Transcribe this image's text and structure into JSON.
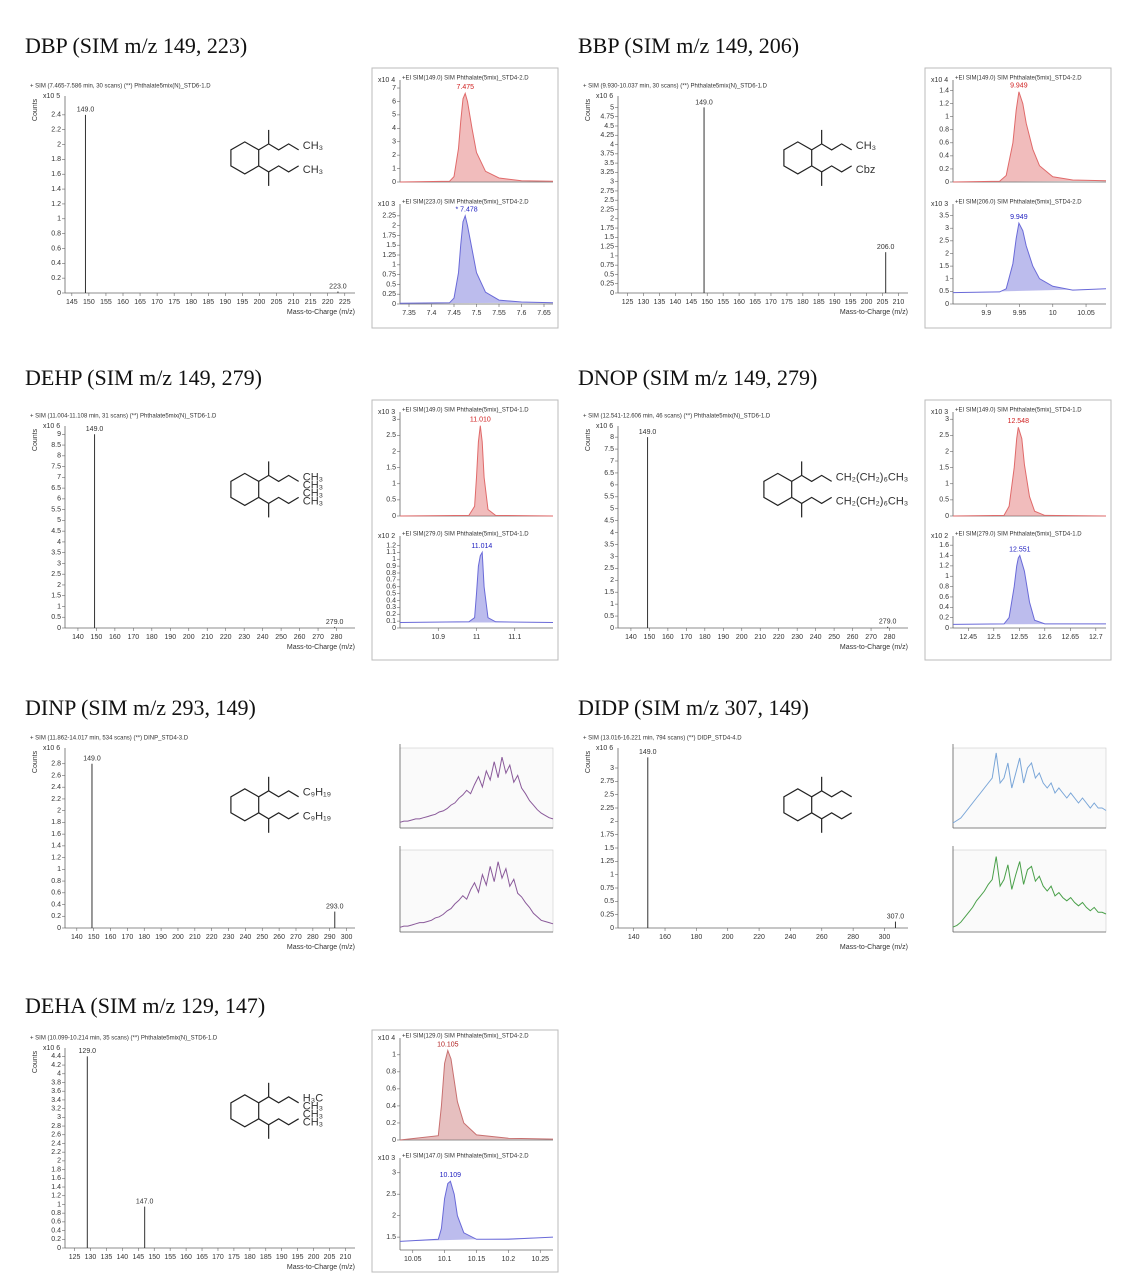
{
  "chart_data": [
    {
      "type": "bar",
      "title": "DBP (SIM m/z 149, 223)",
      "subtitle": "+ SIM (7.465-7.586 min, 30 scans) (**) Phthalate5mix(N)_STD6-1.D",
      "scale": "x10 5",
      "ylabel": "Counts",
      "xlabel": "Mass-to-Charge (m/z)",
      "x": [
        {
          "value": 149,
          "label": "149.0"
        },
        {
          "value": 223,
          "label": "223.0"
        }
      ],
      "values": [
        2.4,
        0.02
      ],
      "color": "#333333",
      "xlim": [
        143,
        228
      ],
      "xticks": [
        145,
        150,
        155,
        160,
        165,
        170,
        175,
        180,
        185,
        190,
        195,
        200,
        205,
        210,
        215,
        220,
        225
      ],
      "ylim": [
        0,
        2.6
      ],
      "yticks": [
        0,
        0.2,
        0.4,
        0.6,
        0.8,
        1,
        1.2,
        1.4,
        1.6,
        1.8,
        2,
        2.2,
        2.4
      ],
      "structure_labels": [
        "CH₃",
        "CH₃"
      ]
    },
    {
      "type": "line",
      "title": "+EI SIM(149.0) SIM Phthalate(5mix)_STD4-2.D",
      "scale": "x10 4",
      "color": "#e06a6a",
      "peak_label": {
        "value": 7.475,
        "label": "7.475"
      },
      "label_color": "#d02020",
      "x": [
        7.33,
        7.44,
        7.45,
        7.46,
        7.465,
        7.47,
        7.475,
        7.48,
        7.49,
        7.5,
        7.52,
        7.55,
        7.6,
        7.67
      ],
      "values": [
        0,
        0.05,
        0.4,
        2.5,
        4.5,
        6.2,
        6.6,
        6.0,
        4.0,
        2.2,
        0.8,
        0.3,
        0.1,
        0.05
      ],
      "xlim": [
        7.33,
        7.67
      ],
      "ylim": [
        0,
        7.3
      ],
      "yticks": [
        0,
        1,
        2,
        3,
        4,
        5,
        6,
        7
      ]
    },
    {
      "type": "line",
      "title": "+EI SIM(223.0) SIM Phthalate(5mix)_STD4-2.D",
      "scale": "x10 3",
      "color": "#6a6ad8",
      "peak_label": {
        "value": 7.478,
        "label": "* 7.478"
      },
      "label_color": "#2020c0",
      "x": [
        7.33,
        7.44,
        7.45,
        7.46,
        7.465,
        7.47,
        7.475,
        7.48,
        7.49,
        7.5,
        7.52,
        7.55,
        7.6,
        7.67
      ],
      "values": [
        0.02,
        0.03,
        0.15,
        0.8,
        1.5,
        2.1,
        2.25,
        2.0,
        1.4,
        0.8,
        0.3,
        0.1,
        0.05,
        0.03
      ],
      "xlim": [
        7.33,
        7.67
      ],
      "xticks": [
        7.35,
        7.4,
        7.45,
        7.5,
        7.55,
        7.6,
        7.65
      ],
      "ylim": [
        0,
        2.45
      ],
      "yticks": [
        0,
        0.25,
        0.5,
        0.75,
        1,
        1.25,
        1.5,
        1.75,
        2,
        2.25
      ]
    },
    {
      "type": "bar",
      "title": "BBP (SIM m/z 149, 206)",
      "subtitle": "+ SIM (9.930-10.037 min, 30 scans) (**) Phthalate5mix(N)_STD6-1.D",
      "scale": "x10 6",
      "ylabel": "Counts",
      "xlabel": "Mass-to-Charge (m/z)",
      "x": [
        {
          "value": 149,
          "label": "149.0"
        },
        {
          "value": 206,
          "label": "206.0"
        }
      ],
      "values": [
        5.0,
        1.1
      ],
      "color": "#333333",
      "xlim": [
        122,
        213
      ],
      "xticks": [
        125,
        130,
        135,
        140,
        145,
        150,
        155,
        160,
        165,
        170,
        175,
        180,
        185,
        190,
        195,
        200,
        205,
        210
      ],
      "ylim": [
        0,
        5.2
      ],
      "yticks": [
        0,
        0.25,
        0.5,
        0.75,
        1,
        1.25,
        1.5,
        1.75,
        2,
        2.25,
        2.5,
        2.75,
        3,
        3.25,
        3.5,
        3.75,
        4,
        4.25,
        4.5,
        4.75,
        5
      ],
      "structure_labels": [
        "CH₃",
        "Cbz"
      ]
    },
    {
      "type": "line",
      "title": "+EI SIM(149.0) SIM Phthalate(5mix)_STD4-2.D",
      "scale": "x10 4",
      "color": "#e06a6a",
      "peak_label": {
        "value": 9.949,
        "label": "9.949"
      },
      "label_color": "#d02020",
      "x": [
        9.85,
        9.92,
        9.93,
        9.94,
        9.945,
        9.949,
        9.955,
        9.96,
        9.97,
        9.98,
        10.0,
        10.03,
        10.08
      ],
      "values": [
        0,
        0.01,
        0.1,
        0.6,
        1.1,
        1.38,
        1.2,
        0.9,
        0.5,
        0.25,
        0.08,
        0.03,
        0.02
      ],
      "xlim": [
        9.85,
        10.08
      ],
      "ylim": [
        0,
        1.5
      ],
      "yticks": [
        0,
        0.2,
        0.4,
        0.6,
        0.8,
        1,
        1.2,
        1.4
      ]
    },
    {
      "type": "line",
      "title": "+EI SIM(206.0) SIM Phthalate(5mix)_STD4-2.D",
      "scale": "x10 3",
      "color": "#6a6ad8",
      "peak_label": {
        "value": 9.949,
        "label": "9.949"
      },
      "label_color": "#2020c0",
      "x": [
        9.85,
        9.92,
        9.93,
        9.94,
        9.945,
        9.949,
        9.955,
        9.96,
        9.97,
        9.98,
        10.0,
        10.03,
        10.08
      ],
      "values": [
        0.45,
        0.48,
        0.6,
        1.6,
        2.6,
        3.2,
        2.9,
        2.3,
        1.5,
        1.0,
        0.7,
        0.55,
        0.6
      ],
      "xlim": [
        9.85,
        10.08
      ],
      "xticks": [
        9.9,
        9.95,
        10,
        10.05
      ],
      "ylim": [
        0,
        3.8
      ],
      "yticks": [
        0,
        0.5,
        1,
        1.5,
        2,
        2.5,
        3,
        3.5
      ]
    },
    {
      "type": "bar",
      "title": "DEHP (SIM m/z 149, 279)",
      "subtitle": "+ SIM (11.004-11.108 min, 31 scans) (**) Phthalate5mix(N)_STD6-1.D",
      "scale": "x10 6",
      "ylabel": "Counts",
      "xlabel": "Mass-to-Charge (m/z)",
      "x": [
        {
          "value": 149,
          "label": "149.0"
        },
        {
          "value": 279,
          "label": "279.0"
        }
      ],
      "values": [
        9.0,
        0.05
      ],
      "color": "#333333",
      "xlim": [
        133,
        290
      ],
      "xticks": [
        140,
        150,
        160,
        170,
        180,
        190,
        200,
        210,
        220,
        230,
        240,
        250,
        260,
        270,
        280
      ],
      "ylim": [
        0,
        9.2
      ],
      "yticks": [
        0,
        0.5,
        1,
        1.5,
        2,
        2.5,
        3,
        3.5,
        4,
        4.5,
        5,
        5.5,
        6,
        6.5,
        7,
        7.5,
        8,
        8.5,
        9
      ],
      "structure_labels": [
        "CH₃",
        "CH₃",
        "CH₃",
        "CH₃"
      ]
    },
    {
      "type": "line",
      "title": "+EI SIM(149.0) SIM Phthalate(5mix)_STD4-1.D",
      "scale": "x10 3",
      "color": "#e06a6a",
      "peak_label": {
        "value": 11.01,
        "label": "11.010"
      },
      "label_color": "#d02020",
      "x": [
        10.8,
        10.98,
        10.995,
        11.0,
        11.005,
        11.01,
        11.015,
        11.02,
        11.03,
        11.05,
        11.2
      ],
      "values": [
        0,
        0.02,
        0.3,
        1.2,
        2.3,
        2.8,
        2.3,
        1.2,
        0.2,
        0.02,
        0
      ],
      "xlim": [
        10.8,
        11.2
      ],
      "ylim": [
        0,
        3.1
      ],
      "yticks": [
        0,
        0.5,
        1,
        1.5,
        2,
        2.5,
        3
      ]
    },
    {
      "type": "line",
      "title": "+EI SIM(279.0) SIM Phthalate(5mix)_STD4-1.D",
      "scale": "x10 2",
      "color": "#6a6ad8",
      "peak_label": {
        "value": 11.014,
        "label": "11.014"
      },
      "label_color": "#2020c0",
      "x": [
        10.8,
        10.98,
        10.995,
        11.0,
        11.005,
        11.01,
        11.015,
        11.02,
        11.03,
        11.05,
        11.2
      ],
      "values": [
        0.08,
        0.09,
        0.15,
        0.5,
        0.9,
        1.05,
        1.1,
        0.6,
        0.15,
        0.09,
        0.08
      ],
      "xlim": [
        10.8,
        11.2
      ],
      "xticks": [
        10.9,
        11,
        11.1
      ],
      "ylim": [
        0,
        1.28
      ],
      "yticks": [
        0,
        0.1,
        0.2,
        0.3,
        0.4,
        0.5,
        0.6,
        0.7,
        0.8,
        0.9,
        1,
        1.1,
        1.2
      ]
    },
    {
      "type": "bar",
      "title": "DNOP (SIM m/z 149, 279)",
      "subtitle": "+ SIM (12.541-12.606 min, 46 scans) (**) Phthalate5mix(N)_STD6-1.D",
      "scale": "x10 6",
      "ylabel": "Counts",
      "xlabel": "Mass-to-Charge (m/z)",
      "x": [
        {
          "value": 149,
          "label": "149.0"
        },
        {
          "value": 279,
          "label": "279.0"
        }
      ],
      "values": [
        8.0,
        0.05
      ],
      "color": "#333333",
      "xlim": [
        133,
        290
      ],
      "xticks": [
        140,
        150,
        160,
        170,
        180,
        190,
        200,
        210,
        220,
        230,
        240,
        250,
        260,
        270,
        280
      ],
      "ylim": [
        0,
        8.3
      ],
      "yticks": [
        0,
        0.5,
        1,
        1.5,
        2,
        2.5,
        3,
        3.5,
        4,
        4.5,
        5,
        5.5,
        6,
        6.5,
        7,
        7.5,
        8
      ],
      "structure_labels": [
        "CH₂(CH₂)₆CH₃",
        "CH₂(CH₂)₆CH₃"
      ]
    },
    {
      "type": "line",
      "title": "+EI SIM(149.0) SIM Phthalate(5mix)_STD4-1.D",
      "scale": "x10 3",
      "color": "#e06a6a",
      "peak_label": {
        "value": 12.548,
        "label": "12.548"
      },
      "label_color": "#d02020",
      "x": [
        12.42,
        12.52,
        12.53,
        12.54,
        12.545,
        12.548,
        12.555,
        12.56,
        12.57,
        12.58,
        12.6,
        12.72
      ],
      "values": [
        0,
        0.02,
        0.3,
        1.5,
        2.4,
        2.75,
        2.4,
        1.6,
        0.6,
        0.15,
        0.02,
        0
      ],
      "xlim": [
        12.42,
        12.72
      ],
      "ylim": [
        0,
        3.1
      ],
      "yticks": [
        0,
        0.5,
        1,
        1.5,
        2,
        2.5,
        3
      ]
    },
    {
      "type": "line",
      "title": "+EI SIM(279.0) SIM Phthalate(5mix)_STD4-1.D",
      "scale": "x10 2",
      "color": "#6a6ad8",
      "peak_label": {
        "value": 12.551,
        "label": "12.551"
      },
      "label_color": "#2020c0",
      "x": [
        12.42,
        12.52,
        12.53,
        12.54,
        12.545,
        12.548,
        12.551,
        12.56,
        12.57,
        12.58,
        12.6,
        12.72
      ],
      "values": [
        0.07,
        0.08,
        0.2,
        0.8,
        1.2,
        1.35,
        1.4,
        1.1,
        0.5,
        0.15,
        0.08,
        0.08
      ],
      "xlim": [
        12.42,
        12.72
      ],
      "xticks": [
        12.45,
        12.5,
        12.55,
        12.6,
        12.65,
        12.7
      ],
      "ylim": [
        0,
        1.7
      ],
      "yticks": [
        0,
        0.2,
        0.4,
        0.6,
        0.8,
        1,
        1.2,
        1.4,
        1.6
      ]
    },
    {
      "type": "bar",
      "title": "DINP (SIM m/z 293, 149)",
      "subtitle": "+ SIM (11.862-14.017 min, 534 scans) (**) DINP_STD4-3.D",
      "scale": "x10 6",
      "ylabel": "Counts",
      "xlabel": "Mass-to-Charge (m/z)",
      "x": [
        {
          "value": 149,
          "label": "149.0"
        },
        {
          "value": 293,
          "label": "293.0"
        }
      ],
      "values": [
        2.8,
        0.28
      ],
      "color": "#333333",
      "xlim": [
        133,
        305
      ],
      "xticks": [
        140,
        150,
        160,
        170,
        180,
        190,
        200,
        210,
        220,
        230,
        240,
        250,
        260,
        270,
        280,
        290,
        300
      ],
      "ylim": [
        0,
        3.0
      ],
      "yticks": [
        0,
        0.2,
        0.4,
        0.6,
        0.8,
        1,
        1.2,
        1.4,
        1.6,
        1.8,
        2,
        2.2,
        2.4,
        2.6,
        2.8
      ],
      "structure_labels": [
        "C₉H₁₉",
        "C₉H₁₉"
      ]
    },
    {
      "type": "line",
      "color": "#8a5a9a",
      "ylim": [
        0,
        7
      ],
      "values": [
        0.5,
        0.6,
        0.6,
        0.7,
        0.8,
        0.8,
        0.9,
        1.0,
        1.1,
        1.2,
        1.4,
        1.5,
        1.7,
        2.0,
        2.2,
        2.6,
        2.9,
        3.3,
        3.0,
        3.8,
        4.5,
        3.6,
        5.0,
        4.2,
        5.8,
        4.4,
        6.2,
        4.8,
        5.5,
        4.0,
        4.6,
        3.5,
        3.0,
        2.4,
        2.0,
        1.6,
        1.3,
        1.1,
        0.9,
        0.8
      ]
    },
    {
      "type": "line",
      "color": "#8a5a9a",
      "ylim": [
        0,
        7
      ],
      "values": [
        0.4,
        0.5,
        0.5,
        0.6,
        0.7,
        0.8,
        0.8,
        0.9,
        1.0,
        1.2,
        1.3,
        1.5,
        1.8,
        2.0,
        2.4,
        2.7,
        3.1,
        2.8,
        3.6,
        4.2,
        3.4,
        4.9,
        4.0,
        5.6,
        4.3,
        6.0,
        4.6,
        5.4,
        3.9,
        4.5,
        3.3,
        3.0,
        2.5,
        2.1,
        1.6,
        1.3,
        1.0,
        0.9,
        0.8,
        0.7
      ]
    },
    {
      "type": "bar",
      "title": "DIDP (SIM m/z 307, 149)",
      "subtitle": "+ SIM (13.016-16.221 min, 794 scans) (**) DIDP_STD4-4.D",
      "scale": "x10 6",
      "ylabel": "Counts",
      "xlabel": "Mass-to-Charge (m/z)",
      "x": [
        {
          "value": 149,
          "label": "149.0"
        },
        {
          "value": 307,
          "label": "307.0"
        }
      ],
      "values": [
        3.2,
        0.12
      ],
      "color": "#333333",
      "xlim": [
        130,
        315
      ],
      "xticks": [
        140,
        160,
        180,
        200,
        220,
        240,
        260,
        280,
        300
      ],
      "ylim": [
        0,
        3.3
      ],
      "yticks": [
        0,
        0.25,
        0.5,
        0.75,
        1,
        1.25,
        1.5,
        1.75,
        2,
        2.25,
        2.5,
        2.75,
        3
      ],
      "structure_labels": []
    },
    {
      "type": "line",
      "color": "#7aa6d8",
      "ylim": [
        0,
        16
      ],
      "values": [
        1,
        1.5,
        2,
        3,
        4,
        5,
        6,
        7,
        8,
        9,
        10,
        15,
        9,
        10,
        13,
        8,
        11,
        14,
        9,
        12,
        13,
        10,
        11,
        9,
        8,
        9,
        7,
        8,
        7,
        6,
        7,
        6,
        5,
        6,
        5,
        4,
        5,
        4,
        4,
        3.5
      ]
    },
    {
      "type": "line",
      "color": "#4aa04a",
      "ylim": [
        0,
        5
      ],
      "values": [
        0.3,
        0.4,
        0.6,
        0.9,
        1.2,
        1.5,
        1.9,
        2.2,
        2.5,
        2.9,
        3.2,
        4.6,
        2.8,
        3.2,
        4.1,
        2.6,
        3.5,
        4.3,
        2.9,
        3.8,
        4.0,
        3.1,
        3.4,
        2.8,
        2.5,
        2.8,
        2.2,
        2.4,
        2.1,
        1.9,
        2.1,
        1.8,
        1.6,
        1.8,
        1.5,
        1.3,
        1.5,
        1.2,
        1.2,
        1.1
      ]
    },
    {
      "type": "bar",
      "title": "DEHA (SIM m/z 129, 147)",
      "subtitle": "+ SIM (10.099-10.214 min, 35 scans) (**) Phthalate5mix(N)_STD6-1.D",
      "scale": "x10 6",
      "ylabel": "Counts",
      "xlabel": "Mass-to-Charge (m/z)",
      "x": [
        {
          "value": 129,
          "label": "129.0"
        },
        {
          "value": 147,
          "label": "147.0"
        }
      ],
      "values": [
        4.4,
        0.95
      ],
      "color": "#333333",
      "xlim": [
        122,
        213
      ],
      "xticks": [
        125,
        130,
        135,
        140,
        145,
        150,
        155,
        160,
        165,
        170,
        175,
        180,
        185,
        190,
        195,
        200,
        205,
        210
      ],
      "ylim": [
        0,
        4.5
      ],
      "yticks": [
        0,
        0.2,
        0.4,
        0.6,
        0.8,
        1,
        1.2,
        1.4,
        1.6,
        1.8,
        2,
        2.2,
        2.4,
        2.6,
        2.8,
        3,
        3.2,
        3.4,
        3.6,
        3.8,
        4,
        4.2,
        4.4
      ],
      "structure_labels": [
        "H₃C",
        "CH₃",
        "CH₃",
        "CH₃"
      ]
    },
    {
      "type": "line",
      "title": "+EI SIM(129.0) SIM Phthalate(5mix)_STD4-2.D",
      "scale": "x10 4",
      "color": "#c87070",
      "peak_label": {
        "value": 10.105,
        "label": "10.105"
      },
      "label_color": "#b02020",
      "x": [
        10.03,
        10.09,
        10.095,
        10.1,
        10.105,
        10.11,
        10.115,
        10.12,
        10.13,
        10.15,
        10.2,
        10.27
      ],
      "values": [
        0,
        0.05,
        0.4,
        0.9,
        1.05,
        0.95,
        0.7,
        0.45,
        0.2,
        0.06,
        0.02,
        0.01
      ],
      "xlim": [
        10.03,
        10.27
      ],
      "ylim": [
        0,
        1.15
      ],
      "yticks": [
        0,
        0.2,
        0.4,
        0.6,
        0.8,
        1
      ]
    },
    {
      "type": "line",
      "title": "+EI SIM(147.0) SIM Phthalate(5mix)_STD4-2.D",
      "scale": "x10 3",
      "color": "#6a6ad8",
      "peak_label": {
        "value": 10.109,
        "label": "10.109"
      },
      "label_color": "#2020c0",
      "x": [
        10.03,
        10.09,
        10.095,
        10.1,
        10.105,
        10.109,
        10.115,
        10.12,
        10.13,
        10.15,
        10.2,
        10.27
      ],
      "values": [
        1.4,
        1.45,
        1.7,
        2.4,
        2.75,
        2.8,
        2.5,
        2.0,
        1.6,
        1.45,
        1.45,
        1.5
      ],
      "xlim": [
        10.03,
        10.27
      ],
      "xticks": [
        10.05,
        10.1,
        10.15,
        10.2,
        10.25
      ],
      "ylim": [
        1.2,
        3.25
      ],
      "yticks": [
        1.5,
        2,
        2.5,
        3
      ]
    }
  ]
}
